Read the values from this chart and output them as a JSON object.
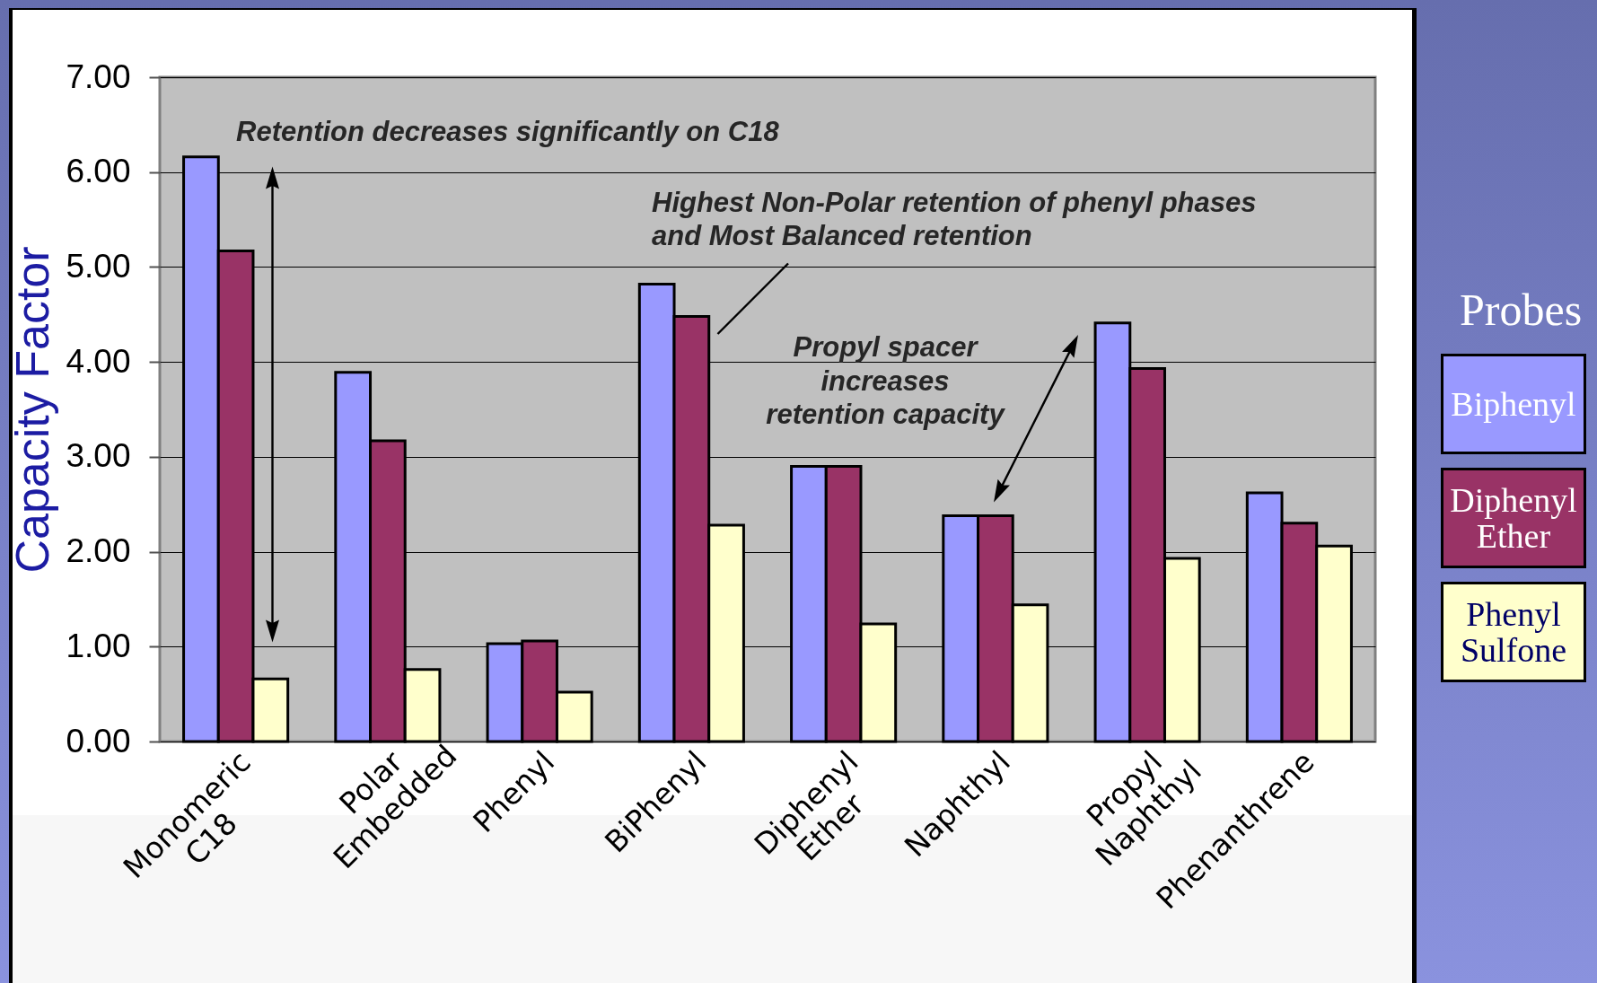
{
  "chart_data": {
    "type": "bar",
    "ylabel": "Capacity Factor",
    "legend_title": "Probes",
    "categories": [
      "Monomeric C18",
      "Polar Embedded",
      "Phenyl",
      "BiPhenyl",
      "Diphenyl Ether",
      "Naphthyl",
      "Propyl Naphthyl",
      "Phenanthrene"
    ],
    "series": [
      {
        "name": "Biphenyl",
        "color": "#9999ff",
        "values": [
          6.16,
          3.89,
          1.03,
          4.82,
          2.9,
          2.38,
          4.41,
          2.62
        ]
      },
      {
        "name": "Diphenyl Ether",
        "color": "#993366",
        "values": [
          5.17,
          3.17,
          1.06,
          4.48,
          2.9,
          2.38,
          3.93,
          2.3
        ]
      },
      {
        "name": "Phenyl Sulfone",
        "color": "#ffffcc",
        "values": [
          0.66,
          0.76,
          0.52,
          2.28,
          1.24,
          1.44,
          1.93,
          2.06
        ]
      }
    ],
    "ylim": [
      0,
      7
    ],
    "yticks": [
      {
        "value": 0,
        "label": "0.00"
      },
      {
        "value": 1,
        "label": "1.00"
      },
      {
        "value": 2,
        "label": "2.00"
      },
      {
        "value": 3,
        "label": "3.00"
      },
      {
        "value": 4,
        "label": "4.00"
      },
      {
        "value": 5,
        "label": "5.00"
      },
      {
        "value": 6,
        "label": "6.00"
      },
      {
        "value": 7,
        "label": "7.00"
      }
    ],
    "grid": "y",
    "legend": "right",
    "annotations": [
      "Retention decreases significantly on C18",
      "Highest Non-Polar retention of phenyl phases and Most Balanced retention",
      "Propyl spacer increases retention capacity"
    ]
  }
}
